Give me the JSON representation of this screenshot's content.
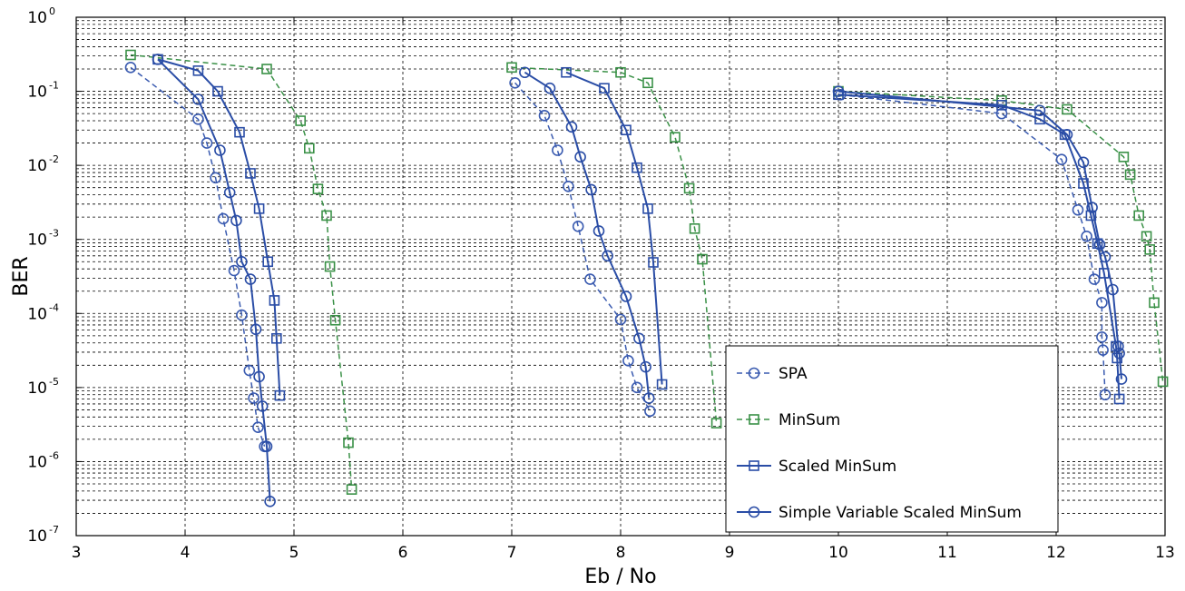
{
  "chart_data": {
    "type": "line",
    "xlabel": "Eb / No",
    "ylabel": "BER",
    "xlim": [
      3,
      13
    ],
    "ylim": [
      1e-07,
      1
    ],
    "yscale": "log",
    "grid": true,
    "legend_position": "bottom-right",
    "x_ticks": [
      "3",
      "4",
      "5",
      "6",
      "7",
      "8",
      "9",
      "10",
      "11",
      "12",
      "13"
    ],
    "y_ticks": [
      {
        "base": "10",
        "exp": "0"
      },
      {
        "base": "10",
        "exp": "-1"
      },
      {
        "base": "10",
        "exp": "-2"
      },
      {
        "base": "10",
        "exp": "-3"
      },
      {
        "base": "10",
        "exp": "-4"
      },
      {
        "base": "10",
        "exp": "-5"
      },
      {
        "base": "10",
        "exp": "-6"
      },
      {
        "base": "10",
        "exp": "-7"
      }
    ],
    "series": [
      {
        "name": "SPA",
        "color": "#3a5bb0",
        "line_style": "dashed",
        "marker": "circle",
        "groups": [
          [
            [
              3.5,
              0.21
            ],
            [
              4.12,
              0.042
            ],
            [
              4.2,
              0.02
            ],
            [
              4.28,
              0.0068
            ],
            [
              4.35,
              0.0019
            ],
            [
              4.45,
              0.00038
            ],
            [
              4.52,
              9.5e-05
            ],
            [
              4.59,
              1.7e-05
            ],
            [
              4.63,
              7.2e-06
            ],
            [
              4.67,
              2.9e-06
            ],
            [
              4.73,
              1.6e-06
            ]
          ],
          [
            [
              7.03,
              0.13
            ],
            [
              7.3,
              0.047
            ],
            [
              7.42,
              0.016
            ],
            [
              7.52,
              0.0052
            ],
            [
              7.61,
              0.0015
            ],
            [
              7.72,
              0.00029
            ],
            [
              8.0,
              8.3e-05
            ],
            [
              8.07,
              2.3e-05
            ],
            [
              8.15,
              1e-05
            ],
            [
              8.27,
              4.8e-06
            ]
          ],
          [
            [
              10.02,
              0.09
            ],
            [
              11.5,
              0.05
            ],
            [
              12.05,
              0.012
            ],
            [
              12.2,
              0.0025
            ],
            [
              12.28,
              0.0011
            ],
            [
              12.35,
              0.00029
            ],
            [
              12.42,
              0.00014
            ],
            [
              12.42,
              4.8e-05
            ],
            [
              12.43,
              3.2e-05
            ],
            [
              12.45,
              8e-06
            ]
          ]
        ]
      },
      {
        "name": "MinSum",
        "color": "#3a9147",
        "line_style": "dashed",
        "marker": "square",
        "groups": [
          [
            [
              3.5,
              0.31
            ],
            [
              4.75,
              0.2
            ],
            [
              5.06,
              0.04
            ],
            [
              5.14,
              0.017
            ],
            [
              5.22,
              0.0048
            ],
            [
              5.3,
              0.0021
            ],
            [
              5.33,
              0.00043
            ],
            [
              5.38,
              8.1e-05
            ],
            [
              5.5,
              1.8e-06
            ],
            [
              5.53,
              4.2e-07
            ]
          ],
          [
            [
              7.0,
              0.21
            ],
            [
              8.0,
              0.18
            ],
            [
              8.25,
              0.13
            ],
            [
              8.5,
              0.024
            ],
            [
              8.63,
              0.0049
            ],
            [
              8.68,
              0.0014
            ],
            [
              8.75,
              0.00054
            ],
            [
              8.88,
              3.3e-06
            ]
          ],
          [
            [
              10.0,
              0.1
            ],
            [
              11.5,
              0.075
            ],
            [
              12.1,
              0.057
            ],
            [
              12.62,
              0.013
            ],
            [
              12.68,
              0.0075
            ],
            [
              12.76,
              0.0021
            ],
            [
              12.83,
              0.0011
            ],
            [
              12.86,
              0.00073
            ],
            [
              12.9,
              0.00014
            ],
            [
              12.98,
              1.2e-05
            ]
          ]
        ]
      },
      {
        "name": "Scaled MinSum",
        "color": "#2a4da6",
        "line_style": "solid",
        "marker": "square",
        "groups": [
          [
            [
              3.75,
              0.27
            ],
            [
              4.12,
              0.19
            ],
            [
              4.3,
              0.1
            ],
            [
              4.5,
              0.028
            ],
            [
              4.6,
              0.0078
            ],
            [
              4.68,
              0.0026
            ],
            [
              4.76,
              0.0005
            ],
            [
              4.82,
              0.00015
            ],
            [
              4.84,
              4.6e-05
            ],
            [
              4.87,
              7.8e-06
            ]
          ],
          [
            [
              7.5,
              0.18
            ],
            [
              7.85,
              0.11
            ],
            [
              8.05,
              0.03
            ],
            [
              8.15,
              0.0093
            ],
            [
              8.25,
              0.0026
            ],
            [
              8.3,
              0.00049
            ],
            [
              8.38,
              1.1e-05
            ]
          ],
          [
            [
              10.0,
              0.09
            ],
            [
              11.5,
              0.065
            ],
            [
              11.85,
              0.042
            ],
            [
              12.08,
              0.026
            ],
            [
              12.25,
              0.0057
            ],
            [
              12.32,
              0.0021
            ],
            [
              12.38,
              0.00088
            ],
            [
              12.44,
              0.00035
            ],
            [
              12.55,
              3.6e-05
            ],
            [
              12.56,
              2.5e-05
            ],
            [
              12.58,
              7e-06
            ]
          ]
        ]
      },
      {
        "name": "Simple Variable Scaled MinSum",
        "color": "#2a4da6",
        "line_style": "solid",
        "marker": "circle",
        "groups": [
          [
            [
              3.75,
              0.27
            ],
            [
              4.12,
              0.078
            ],
            [
              4.32,
              0.016
            ],
            [
              4.41,
              0.0043
            ],
            [
              4.47,
              0.0018
            ],
            [
              4.52,
              0.0005
            ],
            [
              4.6,
              0.00029
            ],
            [
              4.65,
              6.1e-05
            ],
            [
              4.68,
              1.4e-05
            ],
            [
              4.71,
              5.6e-06
            ],
            [
              4.75,
              1.6e-06
            ],
            [
              4.78,
              2.9e-07
            ]
          ],
          [
            [
              7.12,
              0.18
            ],
            [
              7.35,
              0.11
            ],
            [
              7.55,
              0.033
            ],
            [
              7.63,
              0.013
            ],
            [
              7.73,
              0.0047
            ],
            [
              7.8,
              0.0013
            ],
            [
              7.88,
              0.0006
            ],
            [
              8.05,
              0.00017
            ],
            [
              8.17,
              4.6e-05
            ],
            [
              8.23,
              1.9e-05
            ],
            [
              8.26,
              7.2e-06
            ]
          ],
          [
            [
              10.0,
              0.1
            ],
            [
              11.85,
              0.055
            ],
            [
              12.1,
              0.026
            ],
            [
              12.25,
              0.011
            ],
            [
              12.33,
              0.0027
            ],
            [
              12.4,
              0.00085
            ],
            [
              12.45,
              0.00058
            ],
            [
              12.52,
              0.00021
            ],
            [
              12.57,
              3.6e-05
            ],
            [
              12.58,
              2.9e-05
            ],
            [
              12.6,
              1.3e-05
            ]
          ]
        ]
      }
    ]
  }
}
